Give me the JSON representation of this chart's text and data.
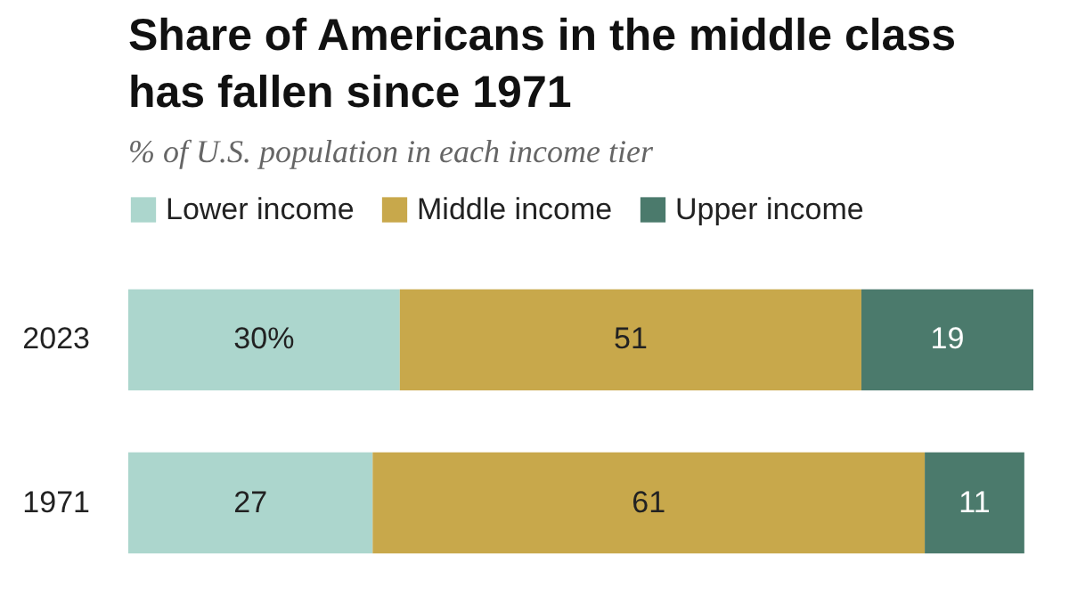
{
  "chart_data": {
    "type": "bar",
    "orientation": "horizontal",
    "stacked": true,
    "title": "Share of Americans in the middle class has fallen since 1971",
    "subtitle": "% of U.S. population in each income tier",
    "categories": [
      "2023",
      "1971"
    ],
    "series": [
      {
        "name": "Lower income",
        "color": "#acd6cd",
        "values": [
          30,
          27
        ],
        "value_labels": [
          "30%",
          "27"
        ]
      },
      {
        "name": "Middle income",
        "color": "#c8a84b",
        "values": [
          51,
          61
        ],
        "value_labels": [
          "51",
          "61"
        ]
      },
      {
        "name": "Upper income",
        "color": "#4b7a6c",
        "values": [
          19,
          11
        ],
        "value_labels": [
          "19",
          "11"
        ]
      }
    ],
    "legend": "top",
    "grid": false
  }
}
